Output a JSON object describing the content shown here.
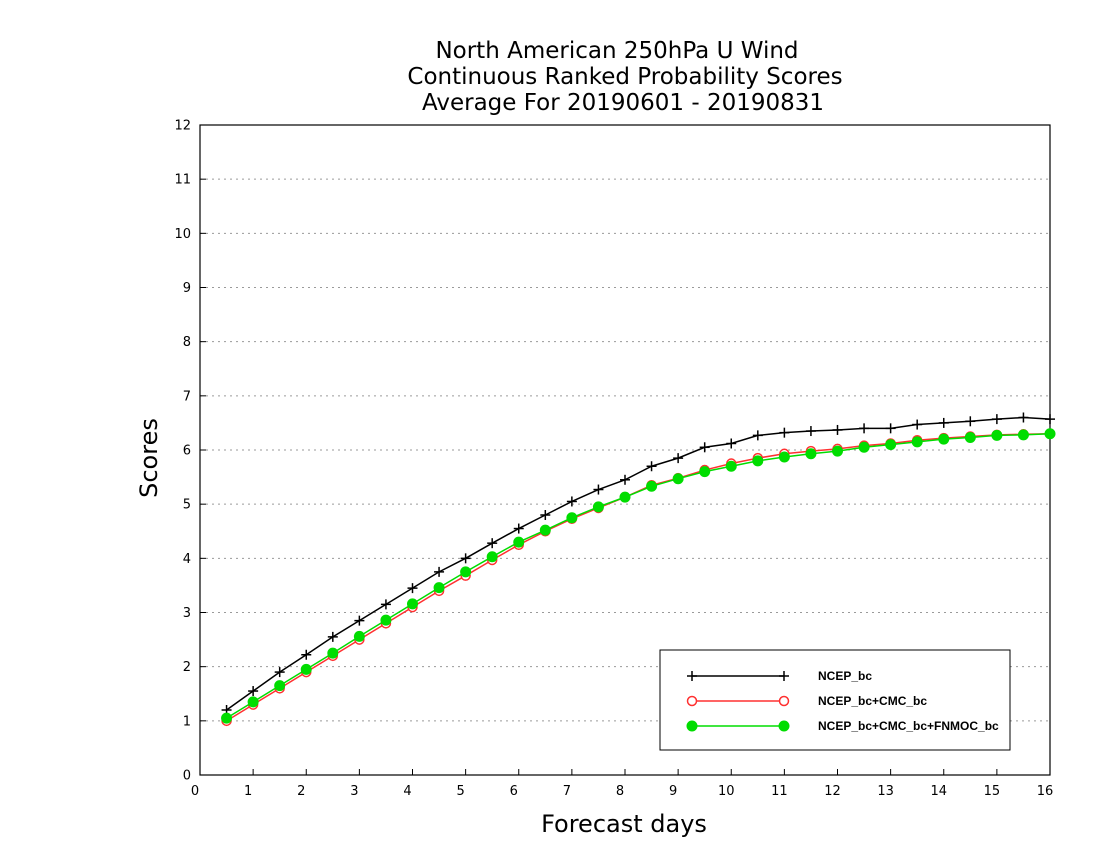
{
  "chart_data": {
    "type": "line",
    "title_lines": [
      "North American 250hPa U Wind",
      "Continuous Ranked Probability Scores",
      "Average For 20190601 - 20190831"
    ],
    "xlabel": "Forecast days",
    "ylabel": "Scores",
    "xlim": [
      0,
      16
    ],
    "ylim": [
      0,
      12
    ],
    "xticks": [
      "0",
      "1",
      "2",
      "3",
      "4",
      "5",
      "6",
      "7",
      "8",
      "9",
      "10",
      "11",
      "12",
      "13",
      "14",
      "15",
      "16"
    ],
    "yticks": [
      "0",
      "1",
      "2",
      "3",
      "4",
      "5",
      "6",
      "7",
      "8",
      "9",
      "10",
      "11",
      "12"
    ],
    "grid": "horizontal dotted",
    "legend_position": "lower-right",
    "x": [
      0.5,
      1,
      1.5,
      2,
      2.5,
      3,
      3.5,
      4,
      4.5,
      5,
      5.5,
      6,
      6.5,
      7,
      7.5,
      8,
      8.5,
      9,
      9.5,
      10,
      10.5,
      11,
      11.5,
      12,
      12.5,
      13,
      13.5,
      14,
      14.5,
      15,
      15.5,
      16
    ],
    "series": [
      {
        "name": "NCEP_bc",
        "color": "#000000",
        "marker": "plus",
        "values": [
          1.2,
          1.55,
          1.9,
          2.22,
          2.55,
          2.85,
          3.15,
          3.45,
          3.75,
          4.0,
          4.28,
          4.55,
          4.8,
          5.05,
          5.27,
          5.45,
          5.7,
          5.85,
          6.05,
          6.12,
          6.27,
          6.32,
          6.35,
          6.37,
          6.4,
          6.4,
          6.47,
          6.5,
          6.53,
          6.57,
          6.6,
          6.57
        ]
      },
      {
        "name": "NCEP_bc+CMC_bc",
        "color": "#ff3030",
        "marker": "open-circle",
        "values": [
          1.0,
          1.3,
          1.6,
          1.9,
          2.2,
          2.5,
          2.8,
          3.1,
          3.4,
          3.68,
          3.97,
          4.25,
          4.5,
          4.73,
          4.93,
          5.13,
          5.35,
          5.48,
          5.63,
          5.75,
          5.85,
          5.93,
          5.98,
          6.02,
          6.08,
          6.12,
          6.18,
          6.22,
          6.25,
          6.28,
          6.29,
          6.3
        ]
      },
      {
        "name": "NCEP_bc+CMC_bc+FNMOC_bc",
        "color": "#00dd00",
        "marker": "filled-circle",
        "values": [
          1.05,
          1.35,
          1.65,
          1.95,
          2.25,
          2.56,
          2.86,
          3.16,
          3.46,
          3.75,
          4.03,
          4.3,
          4.52,
          4.75,
          4.95,
          5.13,
          5.33,
          5.47,
          5.6,
          5.7,
          5.8,
          5.87,
          5.93,
          5.98,
          6.05,
          6.1,
          6.15,
          6.2,
          6.23,
          6.27,
          6.28,
          6.3
        ]
      }
    ]
  }
}
